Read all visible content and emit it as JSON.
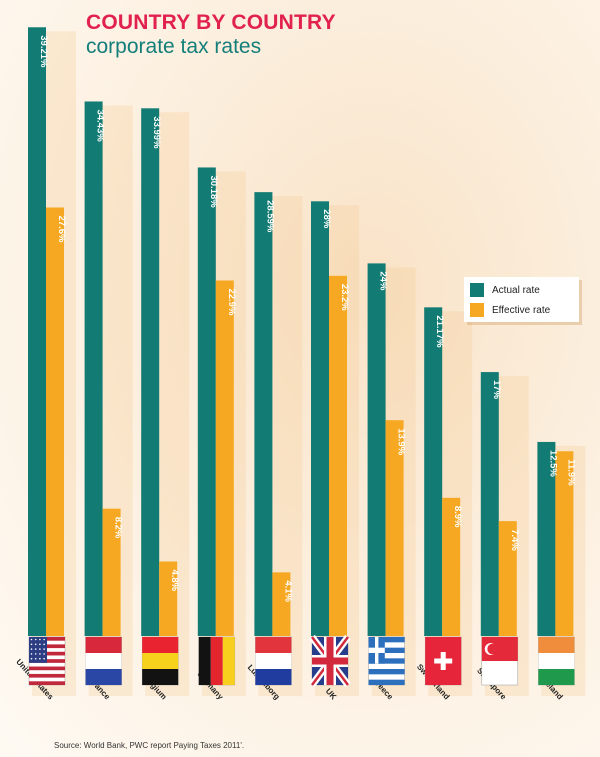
{
  "title": "COUNTRY BY COUNTRY",
  "subtitle": "corporate tax rates",
  "source": "Source: World Bank, PWC report Paying Taxes 2011'.",
  "colors": {
    "actual": "#127b73",
    "effective": "#f7a823",
    "title": "#e1224e",
    "subtitle": "#147f7a"
  },
  "legend": {
    "actual": "Actual rate",
    "effective": "Effective rate",
    "placement": "right"
  },
  "chart_data": {
    "type": "bar",
    "categories": [
      "United States",
      "France",
      "Belgium",
      "Germany",
      "Luxemborg",
      "UK",
      "Greece",
      "Switzerland",
      "Singapore",
      "Ireland"
    ],
    "series": [
      {
        "name": "Actual rate",
        "values": [
          39.21,
          34.43,
          33.99,
          30.18,
          28.59,
          28,
          24,
          21.17,
          17,
          12.5
        ],
        "labels": [
          "39.21%",
          "34.43%",
          "33.99%",
          "30.18%",
          "28.59%",
          "28%",
          "24%",
          "21.17%",
          "17%",
          "12.5%"
        ]
      },
      {
        "name": "Effective rate",
        "values": [
          27.6,
          8.2,
          4.8,
          22.9,
          4.1,
          23.2,
          13.9,
          8.9,
          7.4,
          11.9
        ],
        "labels": [
          "27.6%",
          "8.2%",
          "4.8%",
          "22.9%",
          "4.1%",
          "23.2%",
          "13.9%",
          "8.9%",
          "7.4%",
          "11.9%"
        ]
      }
    ],
    "flags": [
      "us-flag-icon",
      "france-flag-icon",
      "belgium-flag-icon",
      "germany-flag-icon",
      "luxembourg-flag-icon",
      "uk-flag-icon",
      "greece-flag-icon",
      "switzerland-flag-icon",
      "singapore-flag-icon",
      "ireland-flag-icon"
    ],
    "ylim": [
      0,
      40
    ]
  }
}
